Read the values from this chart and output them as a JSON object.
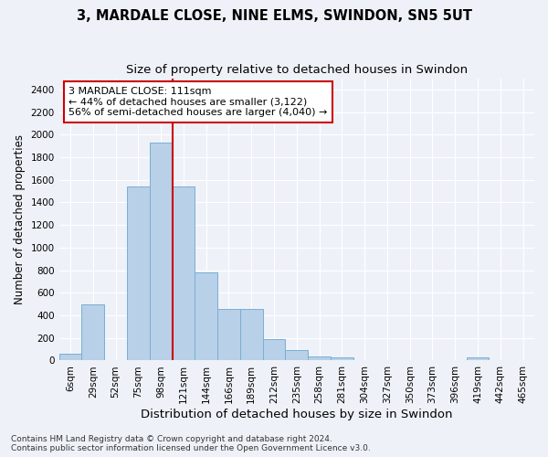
{
  "title_line1": "3, MARDALE CLOSE, NINE ELMS, SWINDON, SN5 5UT",
  "title_line2": "Size of property relative to detached houses in Swindon",
  "xlabel": "Distribution of detached houses by size in Swindon",
  "ylabel": "Number of detached properties",
  "bar_color": "#b8d0e8",
  "bar_edge_color": "#7aafd4",
  "categories": [
    "6sqm",
    "29sqm",
    "52sqm",
    "75sqm",
    "98sqm",
    "121sqm",
    "144sqm",
    "166sqm",
    "189sqm",
    "212sqm",
    "235sqm",
    "258sqm",
    "281sqm",
    "304sqm",
    "327sqm",
    "350sqm",
    "373sqm",
    "396sqm",
    "419sqm",
    "442sqm",
    "465sqm"
  ],
  "values": [
    60,
    500,
    0,
    1540,
    1930,
    1540,
    780,
    460,
    460,
    190,
    90,
    35,
    30,
    5,
    5,
    0,
    0,
    0,
    25,
    0,
    0
  ],
  "ylim": [
    0,
    2500
  ],
  "yticks": [
    0,
    200,
    400,
    600,
    800,
    1000,
    1200,
    1400,
    1600,
    1800,
    2000,
    2200,
    2400
  ],
  "vline_x": 5,
  "vline_color": "#cc0000",
  "annotation_text": "3 MARDALE CLOSE: 111sqm\n← 44% of detached houses are smaller (3,122)\n56% of semi-detached houses are larger (4,040) →",
  "annotation_box_color": "#ffffff",
  "annotation_box_edge_color": "#cc0000",
  "footer_line1": "Contains HM Land Registry data © Crown copyright and database right 2024.",
  "footer_line2": "Contains public sector information licensed under the Open Government Licence v3.0.",
  "bg_color": "#eef2f8",
  "plot_bg_color": "#eef2f8",
  "grid_color": "#ffffff",
  "title_fontsize": 10.5,
  "subtitle_fontsize": 9.5,
  "tick_fontsize": 7.5,
  "ylabel_fontsize": 8.5,
  "xlabel_fontsize": 9.5,
  "annotation_fontsize": 8
}
